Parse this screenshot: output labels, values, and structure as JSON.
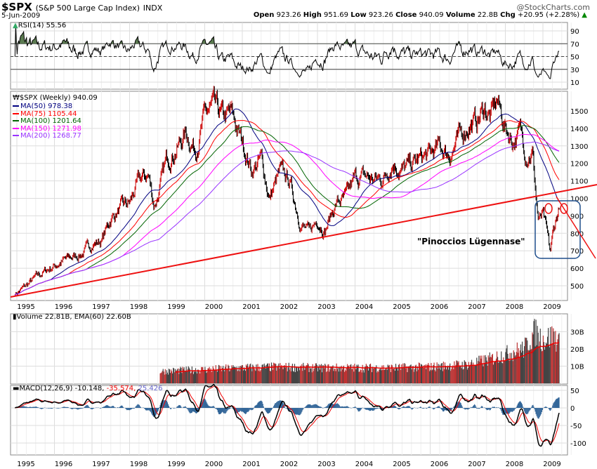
{
  "header": {
    "symbol": "$SPX",
    "name": "(S&P 500 Large Cap Index)",
    "exchange": "INDX",
    "date": "5-Jun-2009",
    "brand": "@StockCharts.com",
    "open_label": "Open",
    "open": "923.26",
    "high_label": "High",
    "high": "951.69",
    "low_label": "Low",
    "low": "923.26",
    "close_label": "Close",
    "close": "940.09",
    "volume_label": "Volume",
    "volume": "22.8B",
    "chg_label": "Chg",
    "chg": "+20.95 (+2.28%)",
    "chg_arrow": "▲"
  },
  "colors": {
    "price": "#000000",
    "up_bar": "#cc0000",
    "ma50": "#000080",
    "ma75": "#ff0000",
    "ma100": "#006400",
    "ma150": "#ff00ff",
    "ma200": "#9933ff",
    "trendline": "#ee1111",
    "box": "#1f4e8c",
    "volume_up": "#bb3333",
    "volume_down": "#444444",
    "macd_hist": "#336699"
  },
  "chart_data": [
    {
      "type": "line",
      "panel": "RSI",
      "label": "RSI(14) 55.56",
      "yticks": [
        90,
        70,
        50,
        30,
        10
      ],
      "ylim": [
        0,
        100
      ],
      "reference_lines": [
        70,
        50,
        30
      ],
      "grid": true
    },
    {
      "type": "ohlc",
      "panel": "price",
      "label": "$SPX (Weekly) 940.09",
      "ylim": [
        420,
        1600
      ],
      "yticks": [
        1500,
        1400,
        1300,
        1200,
        1100,
        1000,
        900,
        800,
        700,
        600,
        500
      ],
      "xticks": [
        "1995",
        "1996",
        "1997",
        "1998",
        "1999",
        "2000",
        "2001",
        "2002",
        "2003",
        "2004",
        "2005",
        "2006",
        "2007",
        "2008",
        "2009"
      ],
      "x": [
        1995.0,
        1995.25,
        1995.5,
        1995.75,
        1996.0,
        1996.25,
        1996.5,
        1996.75,
        1997.0,
        1997.25,
        1997.5,
        1997.75,
        1998.0,
        1998.25,
        1998.5,
        1998.65,
        1998.75,
        1999.0,
        1999.25,
        1999.5,
        1999.75,
        2000.0,
        2000.2,
        2000.5,
        2000.7,
        2001.0,
        2001.25,
        2001.5,
        2001.72,
        2002.0,
        2002.25,
        2002.55,
        2002.78,
        2003.0,
        2003.2,
        2003.5,
        2003.75,
        2004.0,
        2004.25,
        2004.5,
        2004.75,
        2005.0,
        2005.25,
        2005.5,
        2005.75,
        2006.0,
        2006.25,
        2006.5,
        2006.75,
        2007.0,
        2007.25,
        2007.45,
        2007.6,
        2007.78,
        2008.0,
        2008.2,
        2008.4,
        2008.55,
        2008.72,
        2008.82,
        2008.88,
        2009.0,
        2009.12,
        2009.19,
        2009.27,
        2009.36,
        2009.43
      ],
      "close": [
        459,
        500,
        545,
        584,
        615,
        645,
        665,
        687,
        740,
        757,
        885,
        940,
        970,
        1101,
        1133,
        960,
        1017,
        1229,
        1286,
        1373,
        1282,
        1469,
        1520,
        1454,
        1480,
        1320,
        1160,
        1224,
        1000,
        1148,
        1100,
        860,
        800,
        880,
        820,
        975,
        996,
        1112,
        1126,
        1105,
        1114,
        1212,
        1160,
        1191,
        1228,
        1248,
        1294,
        1250,
        1335,
        1418,
        1440,
        1520,
        1460,
        1560,
        1400,
        1330,
        1380,
        1260,
        1270,
        1000,
        870,
        900,
        780,
        683,
        800,
        890,
        940
      ],
      "series": [
        {
          "name": "MA(50)",
          "last": 978.38
        },
        {
          "name": "MA(75)",
          "last": 1105.44
        },
        {
          "name": "MA(100)",
          "last": 1201.64
        },
        {
          "name": "MA(150)",
          "last": 1271.98
        },
        {
          "name": "MA(200)",
          "last": 1268.77
        }
      ],
      "annotations": {
        "text": "\"Pinoccios Lügennase\"",
        "trendline": true,
        "box": true
      }
    },
    {
      "type": "bar",
      "panel": "volume",
      "label": "Volume 22.81B, EMA(60) 22.60B",
      "yticks": [
        "30B",
        "20B",
        "10B"
      ],
      "ylim": [
        0,
        40
      ],
      "x": [
        1998.8,
        2000.0,
        2001.0,
        2002.0,
        2003.0,
        2004.0,
        2005.0,
        2006.0,
        2007.0,
        2007.6,
        2008.0,
        2008.5,
        2008.8,
        2009.0,
        2009.3,
        2009.43
      ],
      "values": [
        7,
        8,
        9,
        9.5,
        9,
        9,
        9,
        9.5,
        11,
        14,
        17,
        20,
        30,
        25,
        28,
        22.8
      ]
    },
    {
      "type": "line",
      "panel": "MACD",
      "label_prefix": "MACD(12,26,9)",
      "macd": "-10.148,",
      "signal": "-35.574,",
      "hist": "25.426",
      "yticks": [
        50,
        0,
        -50,
        -100
      ],
      "ylim": [
        -125,
        65
      ]
    }
  ],
  "legend": [
    {
      "label": "MA(50) 978.38",
      "color": "#000080"
    },
    {
      "label": "MA(75) 1105.44",
      "color": "#ff0000"
    },
    {
      "label": "MA(100) 1201.64",
      "color": "#006400"
    },
    {
      "label": "MA(150) 1271.98",
      "color": "#ff00ff"
    },
    {
      "label": "MA(200) 1268.77",
      "color": "#9933ff"
    }
  ]
}
